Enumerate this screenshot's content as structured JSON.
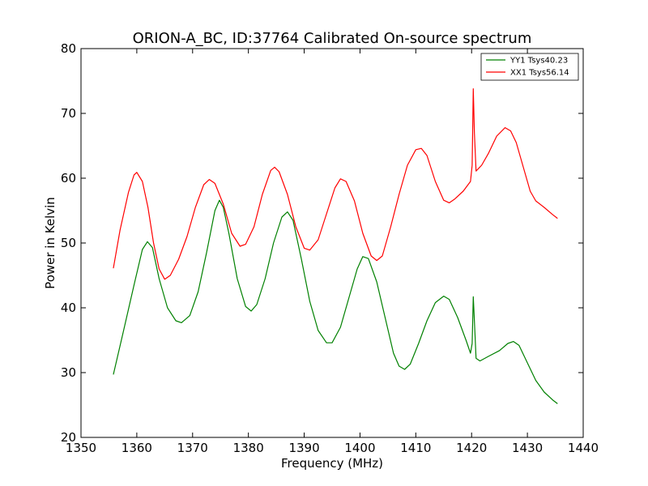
{
  "chart_data": {
    "type": "line",
    "title": "ORION-A_BC, ID:37764 Calibrated On-source spectrum",
    "xlabel": "Frequency (MHz)",
    "ylabel": "Power in Kelvin",
    "xlim": [
      1350,
      1440
    ],
    "ylim": [
      20,
      80
    ],
    "xticks": [
      1350,
      1360,
      1370,
      1380,
      1390,
      1400,
      1410,
      1420,
      1430,
      1440
    ],
    "yticks": [
      20,
      30,
      40,
      50,
      60,
      70,
      80
    ],
    "grid": false,
    "legend_position": "top-right",
    "series": [
      {
        "name": "YY1 Tsys40.23",
        "color": "#008000",
        "points": [
          [
            1355.8,
            29.7
          ],
          [
            1357.5,
            36.0
          ],
          [
            1359.5,
            43.5
          ],
          [
            1361.0,
            49.0
          ],
          [
            1361.9,
            50.2
          ],
          [
            1362.8,
            49.3
          ],
          [
            1364.0,
            44.5
          ],
          [
            1365.5,
            40.0
          ],
          [
            1367.0,
            38.0
          ],
          [
            1368.0,
            37.7
          ],
          [
            1369.5,
            38.8
          ],
          [
            1371.0,
            42.5
          ],
          [
            1372.5,
            48.5
          ],
          [
            1374.0,
            55.0
          ],
          [
            1374.8,
            56.6
          ],
          [
            1375.5,
            55.5
          ],
          [
            1376.5,
            51.5
          ],
          [
            1378.0,
            44.5
          ],
          [
            1379.5,
            40.2
          ],
          [
            1380.5,
            39.5
          ],
          [
            1381.5,
            40.5
          ],
          [
            1383.0,
            44.5
          ],
          [
            1384.5,
            50.0
          ],
          [
            1386.0,
            54.0
          ],
          [
            1387.0,
            54.8
          ],
          [
            1388.0,
            53.5
          ],
          [
            1389.5,
            47.5
          ],
          [
            1391.0,
            41.0
          ],
          [
            1392.5,
            36.5
          ],
          [
            1394.0,
            34.6
          ],
          [
            1395.0,
            34.6
          ],
          [
            1396.5,
            37.0
          ],
          [
            1398.0,
            41.5
          ],
          [
            1399.5,
            46.0
          ],
          [
            1400.5,
            47.9
          ],
          [
            1401.5,
            47.6
          ],
          [
            1403.0,
            44.0
          ],
          [
            1404.5,
            38.5
          ],
          [
            1406.0,
            33.0
          ],
          [
            1407.0,
            31.0
          ],
          [
            1408.0,
            30.5
          ],
          [
            1409.0,
            31.3
          ],
          [
            1410.5,
            34.5
          ],
          [
            1412.0,
            38.0
          ],
          [
            1413.5,
            40.8
          ],
          [
            1415.0,
            41.8
          ],
          [
            1416.0,
            41.3
          ],
          [
            1417.5,
            38.5
          ],
          [
            1419.0,
            35.0
          ],
          [
            1419.8,
            33.0
          ],
          [
            1420.1,
            34.5
          ],
          [
            1420.3,
            41.7
          ],
          [
            1420.5,
            38.0
          ],
          [
            1420.8,
            32.2
          ],
          [
            1421.5,
            31.8
          ],
          [
            1423.0,
            32.5
          ],
          [
            1425.0,
            33.4
          ],
          [
            1426.5,
            34.5
          ],
          [
            1427.5,
            34.8
          ],
          [
            1428.5,
            34.2
          ],
          [
            1430.0,
            31.5
          ],
          [
            1431.5,
            28.8
          ],
          [
            1433.0,
            27.0
          ],
          [
            1434.5,
            25.8
          ],
          [
            1435.4,
            25.2
          ]
        ]
      },
      {
        "name": "XX1 Tsys56.14",
        "color": "#ff0000",
        "points": [
          [
            1355.8,
            46.1
          ],
          [
            1357.0,
            52.0
          ],
          [
            1358.5,
            57.8
          ],
          [
            1359.5,
            60.5
          ],
          [
            1360.0,
            60.9
          ],
          [
            1361.0,
            59.5
          ],
          [
            1362.0,
            55.5
          ],
          [
            1363.0,
            50.0
          ],
          [
            1364.0,
            46.0
          ],
          [
            1365.0,
            44.4
          ],
          [
            1366.0,
            45.0
          ],
          [
            1367.5,
            47.5
          ],
          [
            1369.0,
            51.0
          ],
          [
            1370.5,
            55.5
          ],
          [
            1372.0,
            59.0
          ],
          [
            1373.0,
            59.8
          ],
          [
            1374.0,
            59.2
          ],
          [
            1375.5,
            56.0
          ],
          [
            1377.0,
            51.5
          ],
          [
            1378.5,
            49.5
          ],
          [
            1379.5,
            49.8
          ],
          [
            1381.0,
            52.5
          ],
          [
            1382.5,
            57.5
          ],
          [
            1384.0,
            61.2
          ],
          [
            1384.7,
            61.7
          ],
          [
            1385.5,
            61.0
          ],
          [
            1387.0,
            57.5
          ],
          [
            1388.5,
            52.5
          ],
          [
            1390.0,
            49.2
          ],
          [
            1391.0,
            48.9
          ],
          [
            1392.5,
            50.5
          ],
          [
            1394.0,
            54.5
          ],
          [
            1395.5,
            58.5
          ],
          [
            1396.5,
            59.9
          ],
          [
            1397.5,
            59.5
          ],
          [
            1399.0,
            56.5
          ],
          [
            1400.5,
            51.5
          ],
          [
            1402.0,
            48.0
          ],
          [
            1403.0,
            47.3
          ],
          [
            1404.0,
            48.0
          ],
          [
            1405.5,
            52.5
          ],
          [
            1407.0,
            57.5
          ],
          [
            1408.5,
            62.0
          ],
          [
            1410.0,
            64.4
          ],
          [
            1411.0,
            64.6
          ],
          [
            1412.0,
            63.5
          ],
          [
            1413.5,
            59.5
          ],
          [
            1415.0,
            56.6
          ],
          [
            1416.0,
            56.2
          ],
          [
            1417.0,
            56.8
          ],
          [
            1418.5,
            58.0
          ],
          [
            1419.8,
            59.5
          ],
          [
            1420.1,
            62.0
          ],
          [
            1420.3,
            73.8
          ],
          [
            1420.5,
            67.0
          ],
          [
            1420.8,
            61.1
          ],
          [
            1421.8,
            62.0
          ],
          [
            1423.0,
            63.8
          ],
          [
            1424.5,
            66.5
          ],
          [
            1426.0,
            67.8
          ],
          [
            1427.0,
            67.3
          ],
          [
            1428.0,
            65.5
          ],
          [
            1429.5,
            61.0
          ],
          [
            1430.5,
            58.0
          ],
          [
            1431.5,
            56.5
          ],
          [
            1433.0,
            55.5
          ],
          [
            1434.5,
            54.4
          ],
          [
            1435.4,
            53.8
          ]
        ]
      }
    ]
  }
}
